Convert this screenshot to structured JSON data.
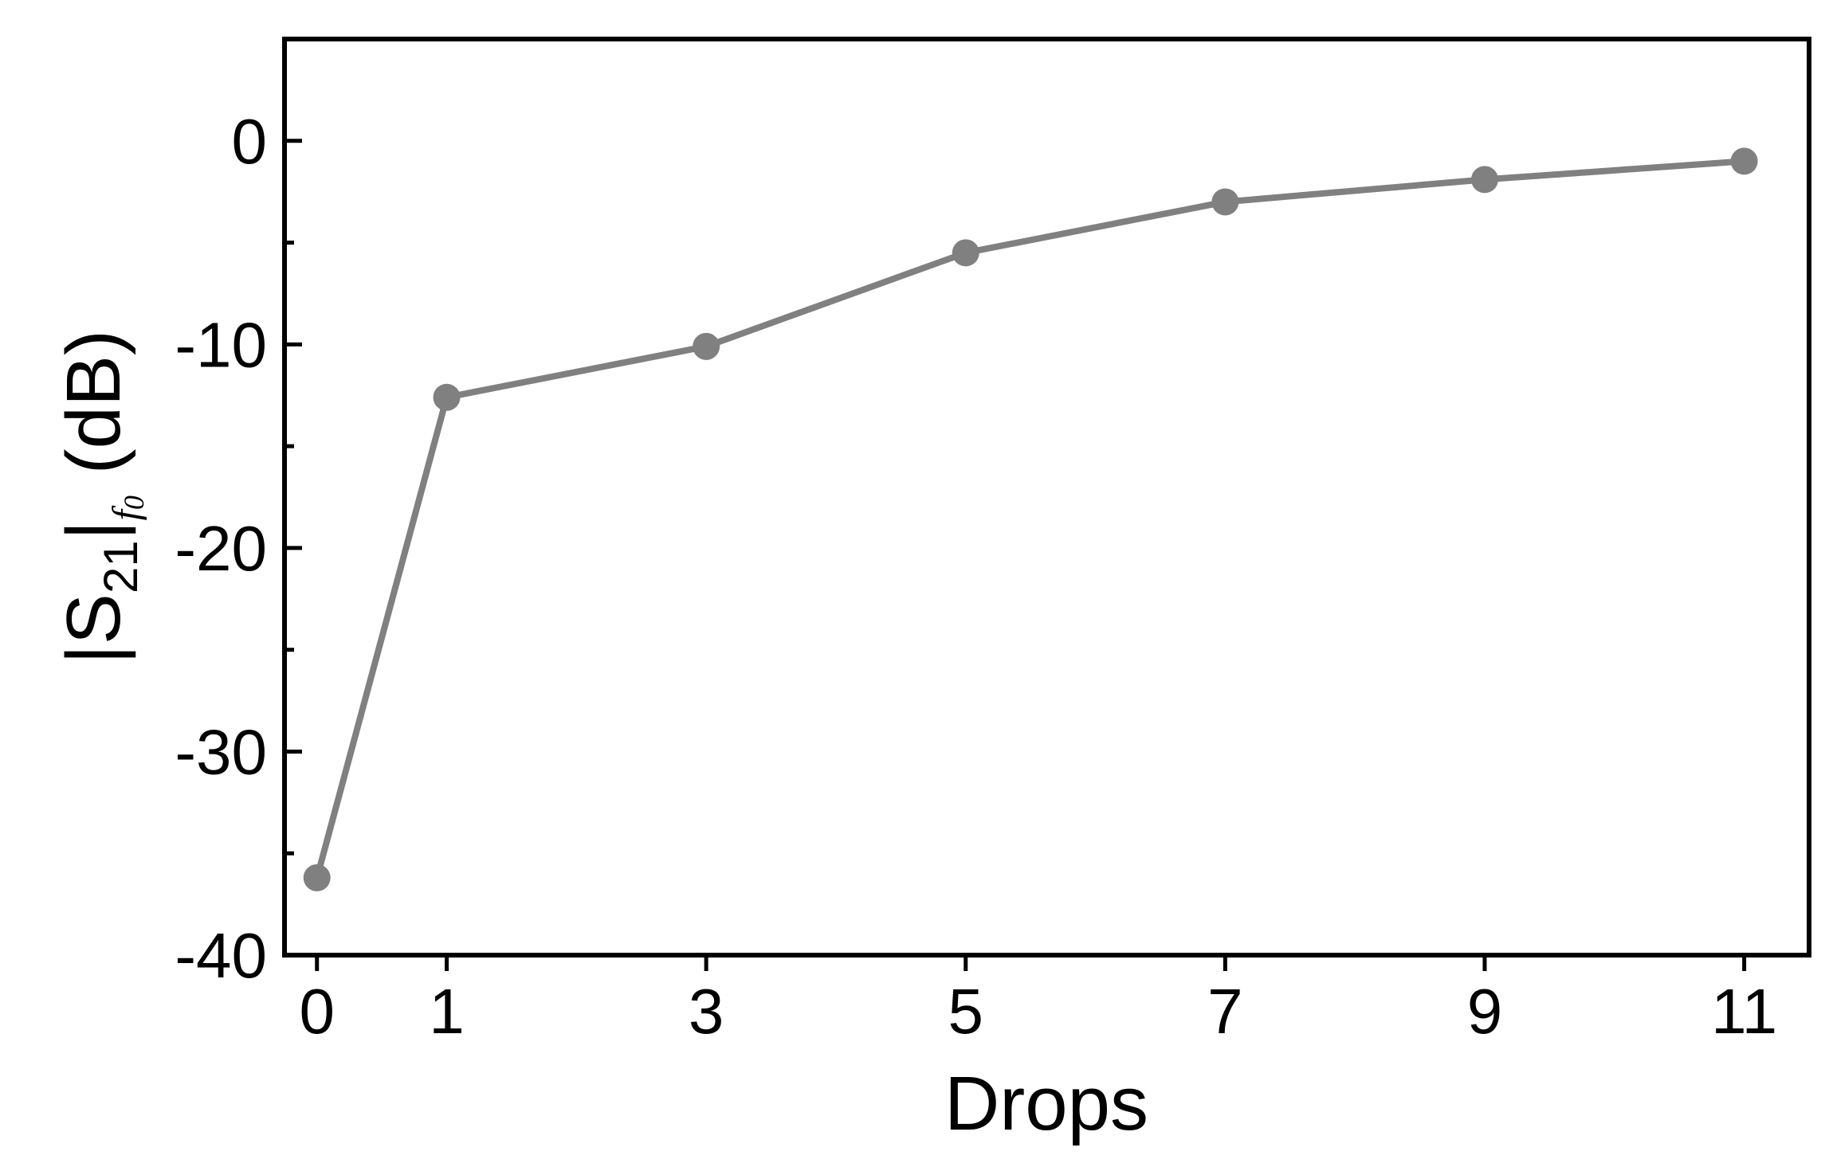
{
  "chart_data": {
    "type": "line",
    "title": "",
    "xlabel": "Drops",
    "ylabel": {
      "bar_left": "|",
      "s": "S",
      "s_sub": "21",
      "bar_right": "|",
      "f": "f",
      "f_sub": "0",
      "unit": " (dB)"
    },
    "x_ticks": [
      "0",
      "1",
      "3",
      "5",
      "7",
      "9",
      "11"
    ],
    "y_ticks": [
      "0",
      "-10",
      "-20",
      "-30",
      "-40"
    ],
    "xlim": [
      -0.25,
      11.5
    ],
    "ylim": [
      -40,
      5
    ],
    "grid": false,
    "line_color": "#808080",
    "series": [
      {
        "x": [
          0,
          1,
          3,
          5,
          7,
          9,
          11
        ],
        "y": [
          -36.2,
          -12.6,
          -10.1,
          -5.5,
          -3.0,
          -1.9,
          -1.0
        ]
      }
    ]
  }
}
